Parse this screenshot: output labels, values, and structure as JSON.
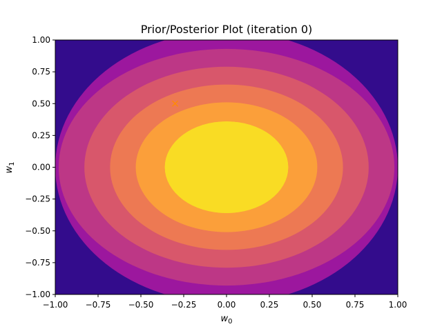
{
  "chart_data": {
    "type": "contour",
    "title": "Prior/Posterior Plot (iteration 0)",
    "xlabel": {
      "base": "w",
      "sub": "0"
    },
    "ylabel": {
      "base": "w",
      "sub": "1"
    },
    "xlim": [
      -1.0,
      1.0
    ],
    "ylim": [
      -1.0,
      1.0
    ],
    "x_ticks": [
      -1.0,
      -0.75,
      -0.5,
      -0.25,
      0.0,
      0.25,
      0.5,
      0.75,
      1.0
    ],
    "y_ticks": [
      -1.0,
      -0.75,
      -0.5,
      -0.25,
      0.0,
      0.25,
      0.5,
      0.75,
      1.0
    ],
    "x_tick_labels": [
      "−1.00",
      "−0.75",
      "−0.50",
      "−0.25",
      "0.00",
      "0.25",
      "0.50",
      "0.75",
      "1.00"
    ],
    "y_tick_labels": [
      "−1.00",
      "−0.75",
      "−0.50",
      "−0.25",
      "0.00",
      "0.25",
      "0.50",
      "0.75",
      "1.00"
    ],
    "colormap": "plasma",
    "grid": false,
    "contour_bands": [
      {
        "level": 1,
        "color": "#330c8c",
        "rx": 1.0,
        "ry": 1.0
      },
      {
        "level": 2,
        "color": "#7201a8",
        "rx": 1.0,
        "ry": 1.07
      },
      {
        "level": 3,
        "color": "#9c179e",
        "rx": 0.98,
        "ry": 0.93
      },
      {
        "level": 4,
        "color": "#bd3786",
        "rx": 0.83,
        "ry": 0.79
      },
      {
        "level": 5,
        "color": "#d8576b",
        "rx": 0.68,
        "ry": 0.65
      },
      {
        "level": 6,
        "color": "#ed7953",
        "rx": 0.53,
        "ry": 0.51
      },
      {
        "level": 7,
        "color": "#fb9f3a",
        "rx": 0.36,
        "ry": 0.36
      }
    ],
    "center": [
      0.0,
      0.0
    ],
    "marker": {
      "type": "x",
      "x": -0.3,
      "y": 0.5,
      "color": "#ff8c00"
    }
  }
}
